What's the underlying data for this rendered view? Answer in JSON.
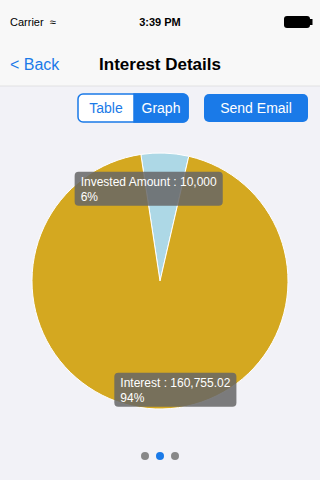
{
  "chart_data": {
    "type": "pie",
    "title": "Interest Details",
    "categories": [
      "Invested Amount : 10,000",
      "Interest : 160,755.02"
    ],
    "values": [
      6,
      94
    ],
    "value_labels": [
      "6%",
      "94%"
    ],
    "data_labels": true,
    "colors": [
      "#add8e6",
      "#d4a820"
    ],
    "annotations": [
      "Carrier  ≈",
      "3:39 PM",
      "< Back",
      "Table",
      "Graph",
      "Send Email"
    ]
  }
}
